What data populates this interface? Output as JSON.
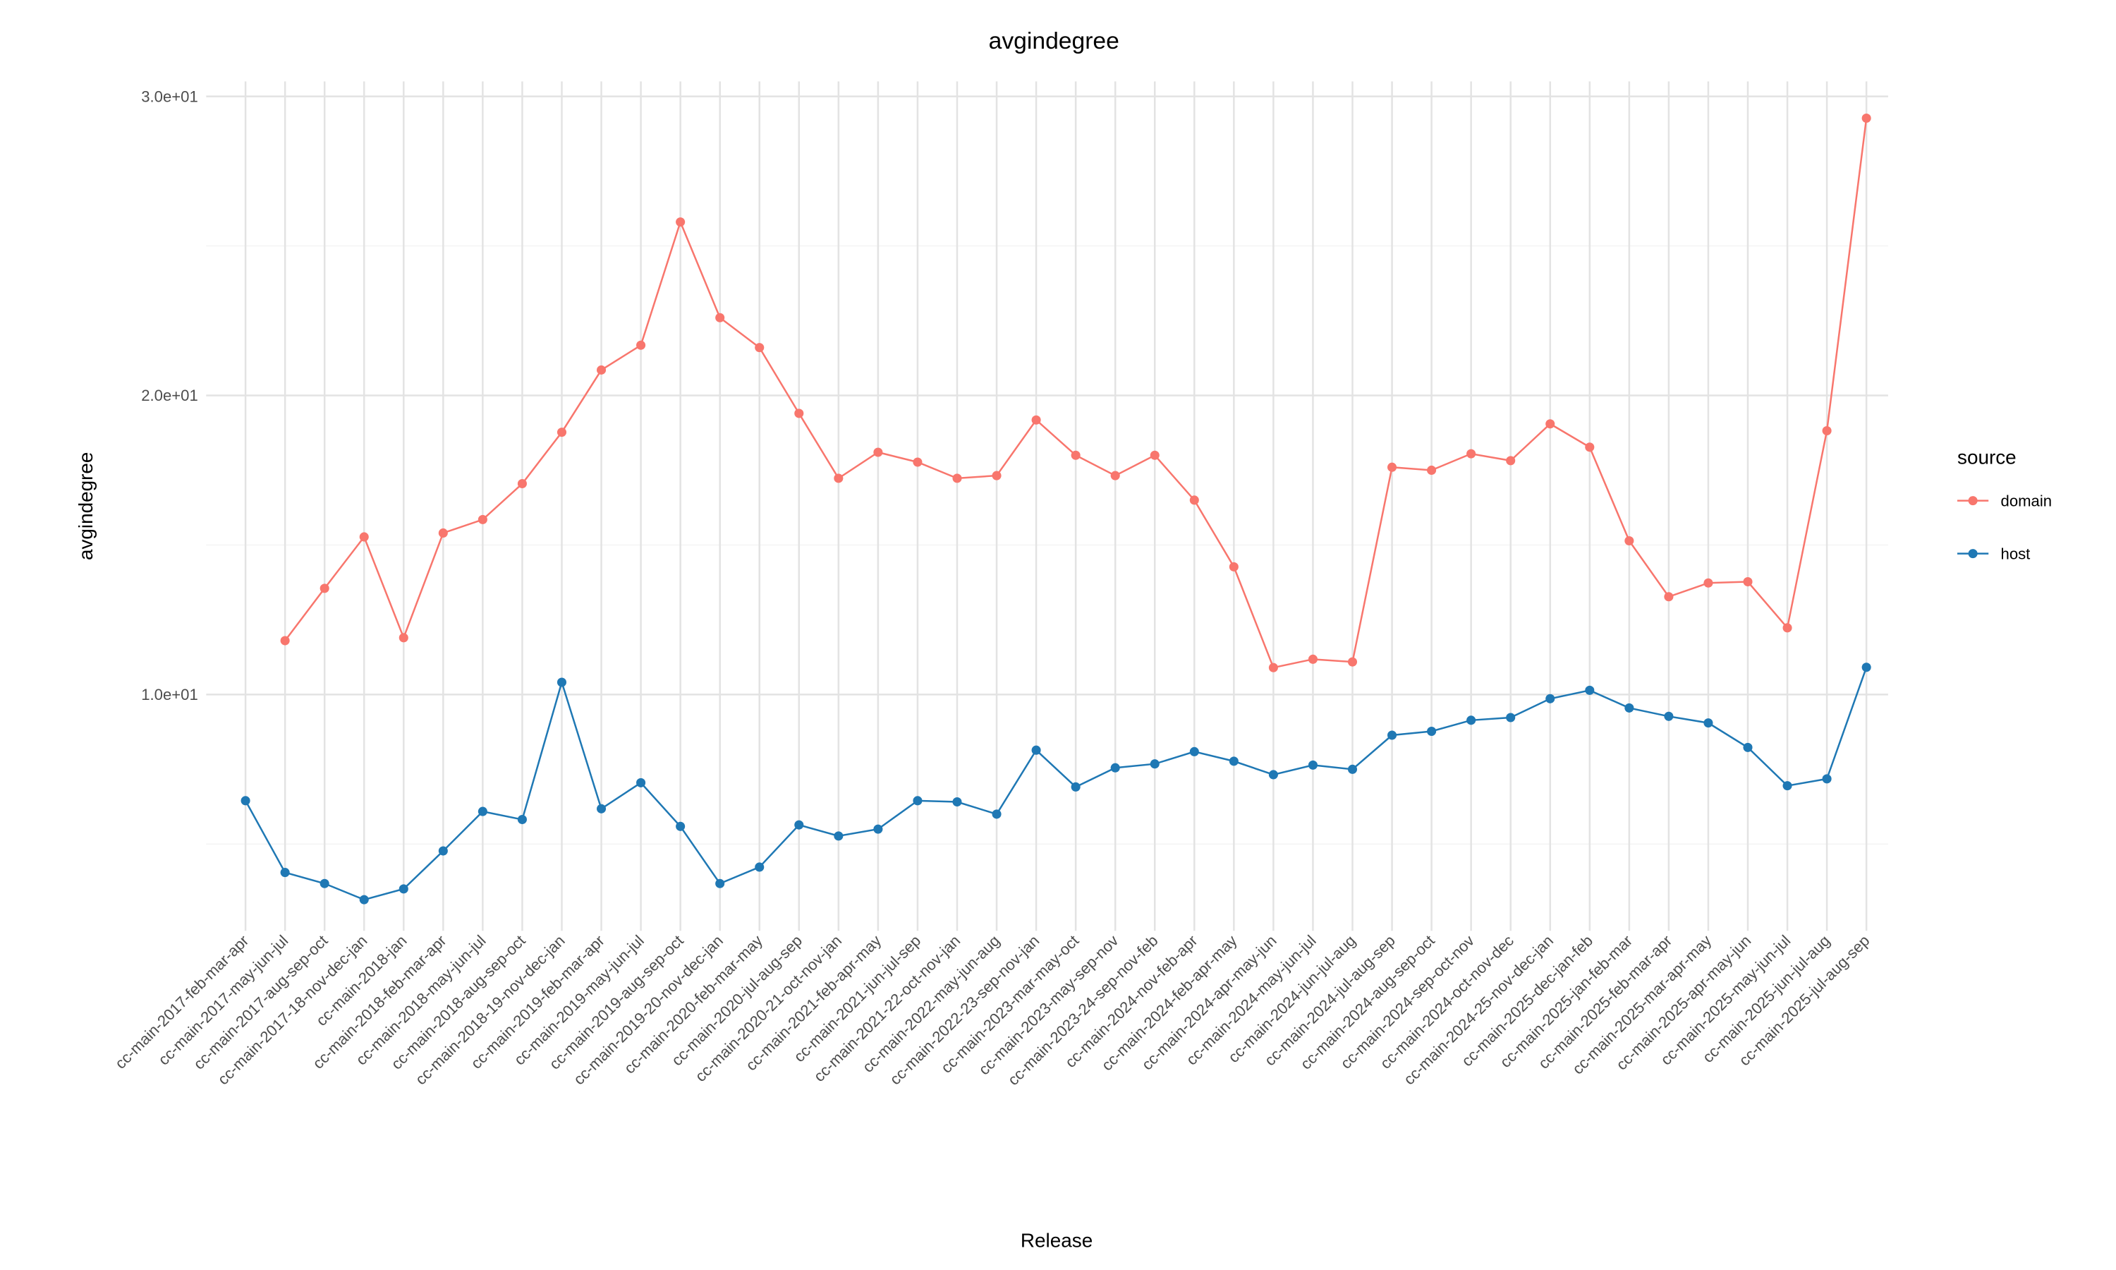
{
  "chart_data": {
    "type": "line",
    "title": "avgindegree",
    "xlabel": "Release",
    "ylabel": "avgindegree",
    "ylim": [
      2.1,
      30.5
    ],
    "yticks": [
      10,
      20,
      30
    ],
    "ytick_labels": [
      "1.0e+01",
      "2.0e+01",
      "3.0e+01"
    ],
    "grid": true,
    "legend": {
      "title": "source",
      "placement": "right",
      "entries": [
        "domain",
        "host"
      ]
    },
    "categories": [
      "cc-main-2017-feb-mar-apr",
      "cc-main-2017-may-jun-jul",
      "cc-main-2017-aug-sep-oct",
      "cc-main-2017-18-nov-dec-jan",
      "cc-main-2018-jan",
      "cc-main-2018-feb-mar-apr",
      "cc-main-2018-may-jun-jul",
      "cc-main-2018-aug-sep-oct",
      "cc-main-2018-19-nov-dec-jan",
      "cc-main-2019-feb-mar-apr",
      "cc-main-2019-may-jun-jul",
      "cc-main-2019-aug-sep-oct",
      "cc-main-2019-20-nov-dec-jan",
      "cc-main-2020-feb-mar-may",
      "cc-main-2020-jul-aug-sep",
      "cc-main-2020-21-oct-nov-jan",
      "cc-main-2021-feb-apr-may",
      "cc-main-2021-jun-jul-sep",
      "cc-main-2021-22-oct-nov-jan",
      "cc-main-2022-may-jun-aug",
      "cc-main-2022-23-sep-nov-jan",
      "cc-main-2023-mar-may-oct",
      "cc-main-2023-may-sep-nov",
      "cc-main-2023-24-sep-nov-feb",
      "cc-main-2024-nov-feb-apr",
      "cc-main-2024-feb-apr-may",
      "cc-main-2024-apr-may-jun",
      "cc-main-2024-may-jun-jul",
      "cc-main-2024-jun-jul-aug",
      "cc-main-2024-jul-aug-sep",
      "cc-main-2024-aug-sep-oct",
      "cc-main-2024-sep-oct-nov",
      "cc-main-2024-oct-nov-dec",
      "cc-main-2024-25-nov-dec-jan",
      "cc-main-2025-dec-jan-feb",
      "cc-main-2025-jan-feb-mar",
      "cc-main-2025-feb-mar-apr",
      "cc-main-2025-mar-apr-may",
      "cc-main-2025-apr-may-jun",
      "cc-main-2025-may-jun-jul",
      "cc-main-2025-jun-jul-aug",
      "cc-main-2025-jul-aug-sep"
    ],
    "series": [
      {
        "name": "domain",
        "color": "#F8766D",
        "values": [
          null,
          11.8,
          13.55,
          15.27,
          11.9,
          15.4,
          15.85,
          17.05,
          18.77,
          20.85,
          21.68,
          25.8,
          22.6,
          21.6,
          19.4,
          17.23,
          18.1,
          17.77,
          17.23,
          17.32,
          19.18,
          18.0,
          17.32,
          18.0,
          16.5,
          14.27,
          10.9,
          11.18,
          11.09,
          17.6,
          17.5,
          18.05,
          17.82,
          19.05,
          18.27,
          15.14,
          13.27,
          13.73,
          13.77,
          12.23,
          18.82,
          29.27
        ]
      },
      {
        "name": "host",
        "color": "#1F78B4",
        "values": [
          6.45,
          4.05,
          3.68,
          3.14,
          3.5,
          4.77,
          6.09,
          5.82,
          10.41,
          6.18,
          7.05,
          5.59,
          3.68,
          4.23,
          5.64,
          5.27,
          5.5,
          6.45,
          6.41,
          6.0,
          8.14,
          6.91,
          7.55,
          7.68,
          8.09,
          7.77,
          7.32,
          7.64,
          7.5,
          8.64,
          8.77,
          9.14,
          9.23,
          9.86,
          10.14,
          9.55,
          9.27,
          9.05,
          8.23,
          6.95,
          7.18,
          10.91
        ]
      }
    ]
  }
}
